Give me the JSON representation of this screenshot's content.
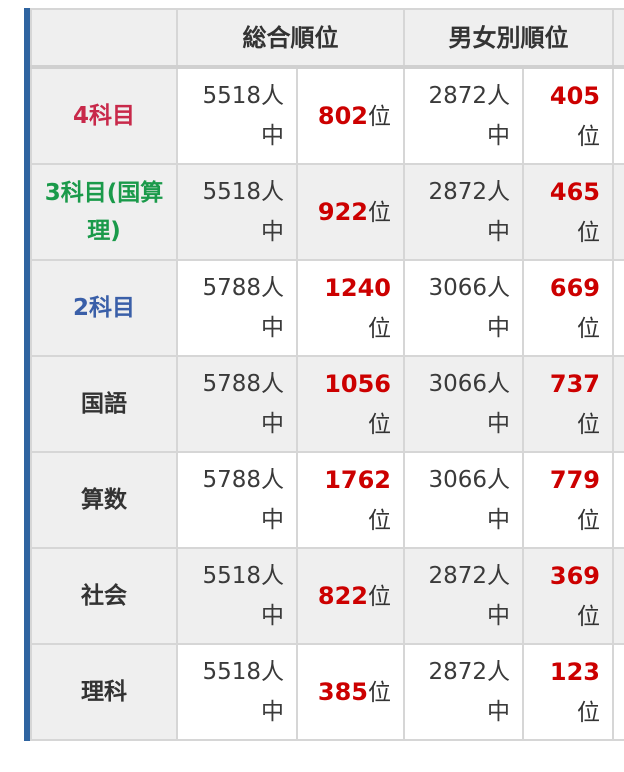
{
  "header": {
    "overall": "総合順位",
    "gender": "男女別順位"
  },
  "colors": {
    "accent_border": "#2f64a0",
    "rank_number": "#cc0000"
  },
  "rows": [
    {
      "label": "4科目",
      "label_color": "#c8294a",
      "total_count": "5518人",
      "count_suffix": "中",
      "total_rank": "802",
      "rank_suffix": "位",
      "gender_count": "2872人",
      "gender_rank": "405"
    },
    {
      "label": "3科目(国算理)",
      "label_color": "#1a9a4a",
      "total_count": "5518人",
      "count_suffix": "中",
      "total_rank": "922",
      "rank_suffix": "位",
      "gender_count": "2872人",
      "gender_rank": "465"
    },
    {
      "label": "2科目",
      "label_color": "#3a5fa8",
      "total_count": "5788人",
      "count_suffix": "中",
      "total_rank": "1240",
      "rank_suffix": "位",
      "gender_count": "3066人",
      "gender_rank": "669"
    },
    {
      "label": "国語",
      "label_color": "#333333",
      "total_count": "5788人",
      "count_suffix": "中",
      "total_rank": "1056",
      "rank_suffix": "位",
      "gender_count": "3066人",
      "gender_rank": "737"
    },
    {
      "label": "算数",
      "label_color": "#333333",
      "total_count": "5788人",
      "count_suffix": "中",
      "total_rank": "1762",
      "rank_suffix": "位",
      "gender_count": "3066人",
      "gender_rank": "779"
    },
    {
      "label": "社会",
      "label_color": "#333333",
      "total_count": "5518人",
      "count_suffix": "中",
      "total_rank": "822",
      "rank_suffix": "位",
      "gender_count": "2872人",
      "gender_rank": "369"
    },
    {
      "label": "理科",
      "label_color": "#333333",
      "total_count": "5518人",
      "count_suffix": "中",
      "total_rank": "385",
      "rank_suffix": "位",
      "gender_count": "2872人",
      "gender_rank": "123"
    }
  ]
}
